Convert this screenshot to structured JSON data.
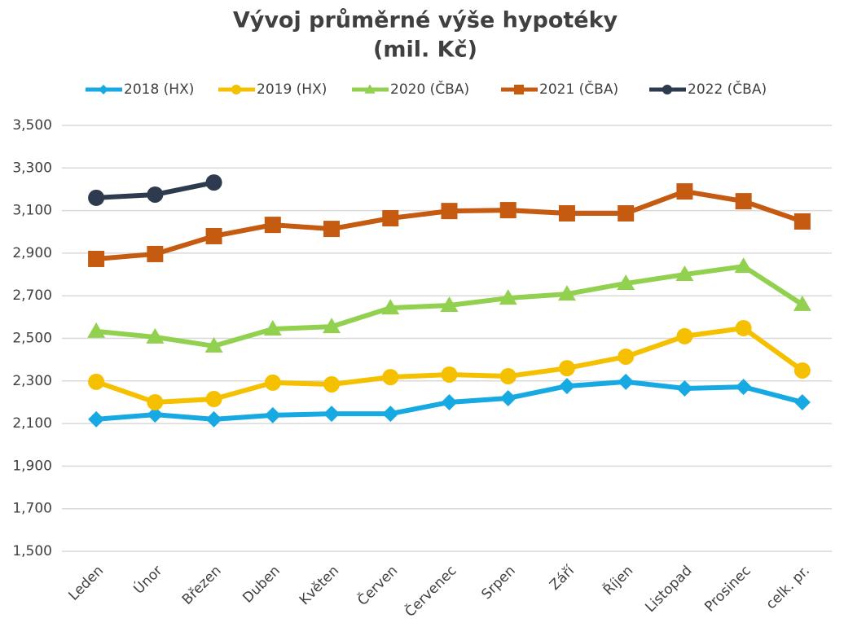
{
  "chart_data": {
    "type": "line",
    "title": [
      "Vývoj průměrné výše hypotéky",
      "(mil. Kč)"
    ],
    "categories": [
      "Leden",
      "Únor",
      "Březen",
      "Duben",
      "Květen",
      "Červen",
      "Červenec",
      "Srpen",
      "Září",
      "Říjen",
      "Listopad",
      "Prosinec",
      "celk. pr."
    ],
    "series": [
      {
        "name": "2018 (HX)",
        "color": "#17a9e1",
        "marker": "diamond",
        "values": [
          2120,
          2142,
          2120,
          2139,
          2146,
          2146,
          2200,
          2219,
          2276,
          2296,
          2265,
          2272,
          2200
        ]
      },
      {
        "name": "2019 (HX)",
        "color": "#f5c000",
        "marker": "circle",
        "values": [
          2296,
          2200,
          2215,
          2292,
          2284,
          2318,
          2330,
          2322,
          2360,
          2414,
          2510,
          2548,
          2349
        ]
      },
      {
        "name": "2020 (ČBA)",
        "color": "#92d050",
        "marker": "triangle",
        "values": [
          2533,
          2506,
          2464,
          2544,
          2555,
          2643,
          2655,
          2689,
          2708,
          2758,
          2800,
          2838,
          2659
        ]
      },
      {
        "name": "2021 (ČBA)",
        "color": "#c55a11",
        "marker": "square",
        "values": [
          2873,
          2896,
          2980,
          3033,
          3014,
          3064,
          3098,
          3102,
          3087,
          3087,
          3190,
          3144,
          3049
        ]
      },
      {
        "name": "2022 (ČBA)",
        "color": "#2e3a4d",
        "marker": "circle",
        "values": [
          3160,
          3175,
          3232,
          null,
          null,
          null,
          null,
          null,
          null,
          null,
          null,
          null,
          null
        ]
      }
    ],
    "ylim": [
      1500,
      3500
    ],
    "yticks": [
      {
        "value": 1500,
        "label": "1,500"
      },
      {
        "value": 1700,
        "label": "1,700"
      },
      {
        "value": 1900,
        "label": "1,900"
      },
      {
        "value": 2100,
        "label": "2,100"
      },
      {
        "value": 2300,
        "label": "2,300"
      },
      {
        "value": 2500,
        "label": "2,500"
      },
      {
        "value": 2700,
        "label": "2,700"
      },
      {
        "value": 2900,
        "label": "2,900"
      },
      {
        "value": 3100,
        "label": "3,100"
      },
      {
        "value": 3300,
        "label": "3,300"
      },
      {
        "value": 3500,
        "label": "3,500"
      }
    ],
    "grid": true,
    "legend": "top"
  }
}
